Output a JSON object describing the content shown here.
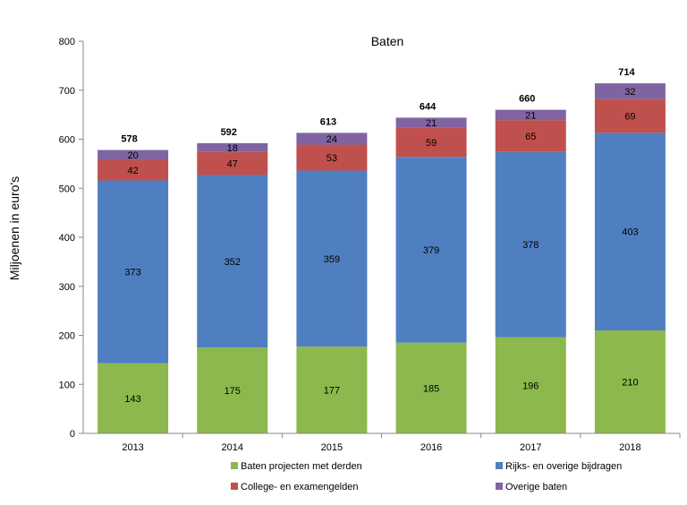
{
  "chart_data": {
    "type": "bar",
    "stacked": true,
    "title": "Baten",
    "xlabel": "",
    "ylabel": "Miljoenen in euro's",
    "ylim": [
      0,
      800
    ],
    "yticks": [
      0,
      100,
      200,
      300,
      400,
      500,
      600,
      700,
      800
    ],
    "categories": [
      "2013",
      "2014",
      "2015",
      "2016",
      "2017",
      "2018"
    ],
    "series": [
      {
        "name": "Baten projecten met derden",
        "color": "#8cb84d",
        "values": [
          143,
          175,
          177,
          185,
          196,
          210
        ]
      },
      {
        "name": "Rijks- en overige bijdragen",
        "color": "#4f7fc0",
        "values": [
          373,
          352,
          359,
          379,
          378,
          403
        ]
      },
      {
        "name": "College- en examengelden",
        "color": "#c0504d",
        "values": [
          42,
          47,
          53,
          59,
          65,
          69
        ]
      },
      {
        "name": "Overige baten",
        "color": "#8064a2",
        "values": [
          20,
          18,
          24,
          21,
          21,
          32
        ]
      }
    ],
    "totals": [
      578,
      592,
      613,
      644,
      660,
      714
    ],
    "legend_order": [
      0,
      1,
      2,
      3
    ],
    "legend_position": "bottom"
  }
}
